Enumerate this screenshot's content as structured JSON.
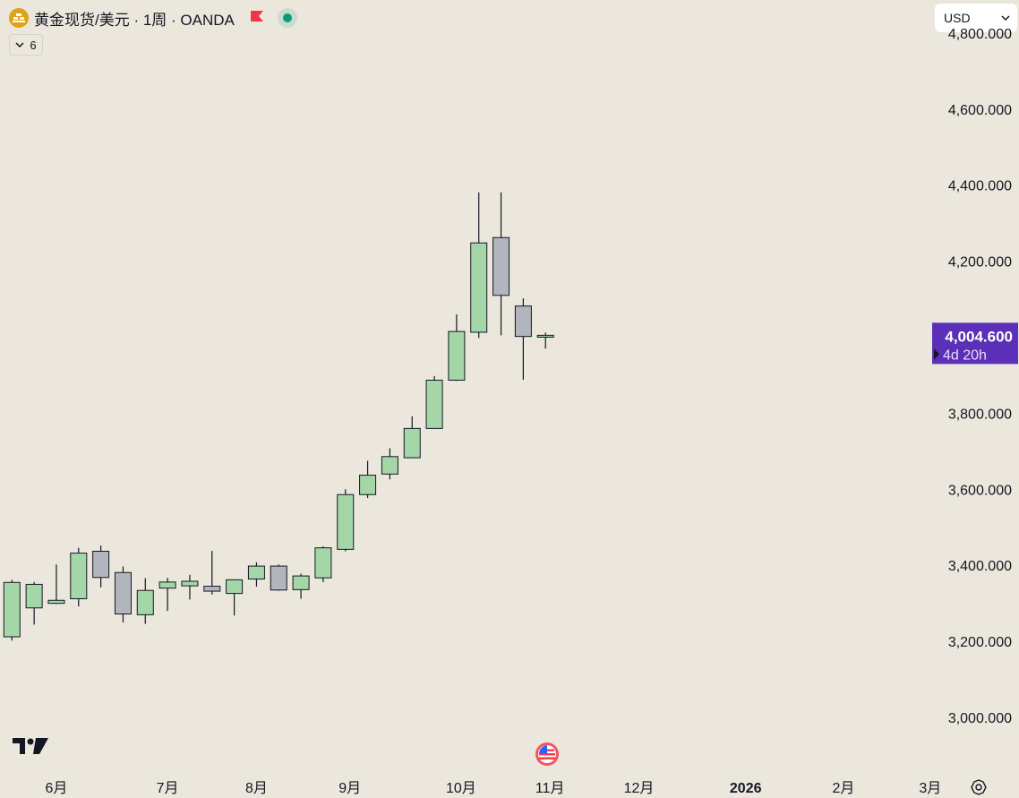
{
  "legend": {
    "symbol_title": "黄金现货/美元 · 1周 · OANDA",
    "coin_icon": "gold-coin-icon",
    "flag_icon": "flag-icon",
    "flag_color": "#f23645",
    "status_color": "#089981"
  },
  "indicators_toggle": {
    "count": "6"
  },
  "currency_select": {
    "value": "USD"
  },
  "price_label": {
    "price": "4,004.600",
    "countdown": "4d 20h",
    "color": "#5b2fb8"
  },
  "colors": {
    "up": "#a5d6a7",
    "down": "#b2b5be",
    "wick": "#131722",
    "bg": "#ebe7dd"
  },
  "chart_data": {
    "type": "candlestick",
    "period": "weekly",
    "y_ticks": [
      "3,000.000",
      "3,200.000",
      "3,400.000",
      "3,600.000",
      "3,800.000",
      "4,000.000",
      "4,200.000",
      "4,400.000",
      "4,600.000",
      "4,800.000"
    ],
    "y_tick_values": [
      3000,
      3200,
      3400,
      3600,
      3800,
      4000,
      4200,
      4400,
      4600,
      4800
    ],
    "ylim": [
      2950,
      4800
    ],
    "x_labels": [
      {
        "label": "6月",
        "index": 2
      },
      {
        "label": "7月",
        "index": 7
      },
      {
        "label": "8月",
        "index": 11
      },
      {
        "label": "9月",
        "index": 15.2
      },
      {
        "label": "10月",
        "index": 20.2
      },
      {
        "label": "11月",
        "index": 24.2
      },
      {
        "label": "12月",
        "index": 28.2
      },
      {
        "label": "2026",
        "index": 33
      },
      {
        "label": "2月",
        "index": 37.4
      },
      {
        "label": "3月",
        "index": 41.3
      }
    ],
    "candles": [
      {
        "o": 3212,
        "h": 3362,
        "l": 3202,
        "c": 3355
      },
      {
        "o": 3288,
        "h": 3356,
        "l": 3244,
        "c": 3350
      },
      {
        "o": 3300,
        "h": 3402,
        "l": 3298,
        "c": 3308
      },
      {
        "o": 3312,
        "h": 3446,
        "l": 3292,
        "c": 3432
      },
      {
        "o": 3437,
        "h": 3452,
        "l": 3342,
        "c": 3368
      },
      {
        "o": 3381,
        "h": 3397,
        "l": 3250,
        "c": 3272
      },
      {
        "o": 3270,
        "h": 3366,
        "l": 3246,
        "c": 3334
      },
      {
        "o": 3340,
        "h": 3367,
        "l": 3280,
        "c": 3356
      },
      {
        "o": 3346,
        "h": 3375,
        "l": 3310,
        "c": 3358
      },
      {
        "o": 3345,
        "h": 3438,
        "l": 3323,
        "c": 3332
      },
      {
        "o": 3326,
        "h": 3360,
        "l": 3268,
        "c": 3362
      },
      {
        "o": 3364,
        "h": 3408,
        "l": 3344,
        "c": 3398
      },
      {
        "o": 3398,
        "h": 3402,
        "l": 3333,
        "c": 3335
      },
      {
        "o": 3336,
        "h": 3378,
        "l": 3312,
        "c": 3372
      },
      {
        "o": 3367,
        "h": 3450,
        "l": 3356,
        "c": 3446
      },
      {
        "o": 3442,
        "h": 3600,
        "l": 3437,
        "c": 3586
      },
      {
        "o": 3586,
        "h": 3675,
        "l": 3577,
        "c": 3637
      },
      {
        "o": 3640,
        "h": 3708,
        "l": 3626,
        "c": 3686
      },
      {
        "o": 3683,
        "h": 3792,
        "l": 3682,
        "c": 3760
      },
      {
        "o": 3760,
        "h": 3898,
        "l": 3759,
        "c": 3887
      },
      {
        "o": 3887,
        "h": 4060,
        "l": 3885,
        "c": 4015
      },
      {
        "o": 4013,
        "h": 4381,
        "l": 3998,
        "c": 4248
      },
      {
        "o": 4262,
        "h": 4381,
        "l": 4005,
        "c": 4110
      },
      {
        "o": 4082,
        "h": 4102,
        "l": 3888,
        "c": 4002
      },
      {
        "o": 4000,
        "h": 4012,
        "l": 3970,
        "c": 4005
      }
    ]
  }
}
